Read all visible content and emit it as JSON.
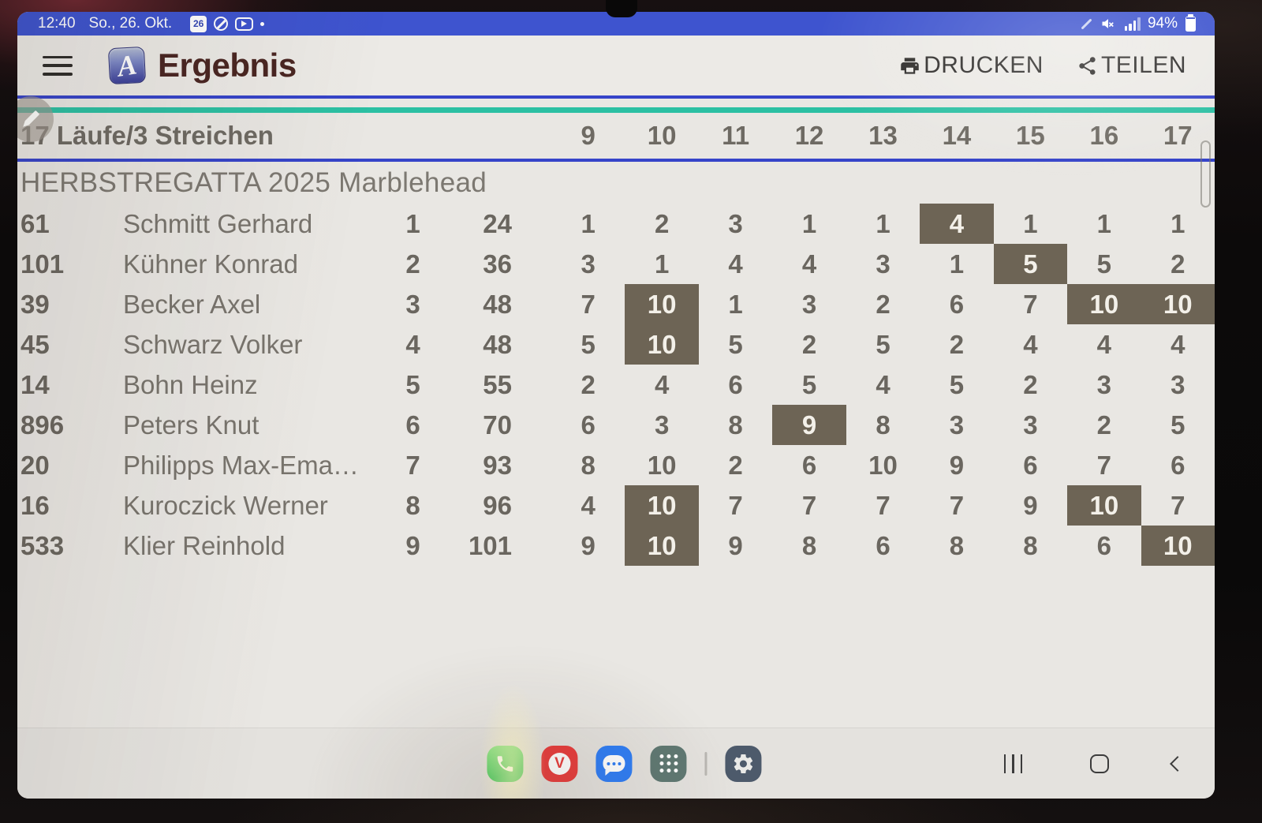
{
  "status_bar": {
    "time": "12:40",
    "date": "So., 26. Okt.",
    "calendar_day": "26",
    "battery_percent": "94%",
    "notification_icons": [
      "calendar-notification-icon",
      "circle-slash-notification-icon",
      "play-notification-icon",
      "notification-dot"
    ],
    "system_icons": [
      "stylus-icon",
      "sound-muted-icon",
      "signal-strength-icon",
      "battery-icon"
    ]
  },
  "app_bar": {
    "title": "Ergebnis",
    "logo_letter": "A",
    "actions": [
      {
        "label": "DRUCKEN",
        "icon": "printer-icon"
      },
      {
        "label": "TEILEN",
        "icon": "share-icon"
      }
    ]
  },
  "results": {
    "summary": "17 Läufe/3 Streichen",
    "race_numbers": [
      "9",
      "10",
      "11",
      "12",
      "13",
      "14",
      "15",
      "16",
      "17"
    ],
    "event_title": "HERBSTREGATTA 2025 Marblehead",
    "rows": [
      {
        "sail": "61",
        "name": "Schmitt Gerhard",
        "rank": "1",
        "points": "24",
        "races": [
          "1",
          "2",
          "3",
          "1",
          "1",
          "4",
          "1",
          "1",
          "1"
        ],
        "discard_indices": [
          5
        ]
      },
      {
        "sail": "101",
        "name": "Kühner Konrad",
        "rank": "2",
        "points": "36",
        "races": [
          "3",
          "1",
          "4",
          "4",
          "3",
          "1",
          "5",
          "5",
          "2"
        ],
        "discard_indices": [
          6
        ]
      },
      {
        "sail": "39",
        "name": "Becker Axel",
        "rank": "3",
        "points": "48",
        "races": [
          "7",
          "10",
          "1",
          "3",
          "2",
          "6",
          "7",
          "10",
          "10"
        ],
        "discard_indices": [
          1,
          7,
          8
        ]
      },
      {
        "sail": "45",
        "name": "Schwarz Volker",
        "rank": "4",
        "points": "48",
        "races": [
          "5",
          "10",
          "5",
          "2",
          "5",
          "2",
          "4",
          "4",
          "4"
        ],
        "discard_indices": [
          1
        ]
      },
      {
        "sail": "14",
        "name": "Bohn Heinz",
        "rank": "5",
        "points": "55",
        "races": [
          "2",
          "4",
          "6",
          "5",
          "4",
          "5",
          "2",
          "3",
          "3"
        ],
        "discard_indices": []
      },
      {
        "sail": "896",
        "name": "Peters Knut",
        "rank": "6",
        "points": "70",
        "races": [
          "6",
          "3",
          "8",
          "9",
          "8",
          "3",
          "3",
          "2",
          "5"
        ],
        "discard_indices": [
          3
        ]
      },
      {
        "sail": "20",
        "name": "Philipps Max-Ema…",
        "rank": "7",
        "points": "93",
        "races": [
          "8",
          "10",
          "2",
          "6",
          "10",
          "9",
          "6",
          "7",
          "6"
        ],
        "discard_indices": []
      },
      {
        "sail": "16",
        "name": "Kuroczick Werner",
        "rank": "8",
        "points": "96",
        "races": [
          "4",
          "10",
          "7",
          "7",
          "7",
          "7",
          "9",
          "10",
          "7"
        ],
        "discard_indices": [
          1,
          7
        ]
      },
      {
        "sail": "533",
        "name": "Klier Reinhold",
        "rank": "9",
        "points": "101",
        "races": [
          "9",
          "10",
          "9",
          "8",
          "6",
          "8",
          "8",
          "6",
          "10"
        ],
        "discard_indices": [
          1,
          8
        ]
      }
    ]
  },
  "dock": {
    "apps": [
      "phone",
      "vivaldi-browser",
      "messages",
      "app-drawer",
      "settings"
    ],
    "nav_buttons": [
      "recents",
      "home",
      "back"
    ]
  },
  "colors": {
    "status_bar_blue": "#3e54cf",
    "rule_blue": "#3644c9",
    "rule_teal": "#2cc0a3",
    "app_title_maroon": "#4a2622",
    "discard_cell_bg": "#6d6455",
    "discard_cell_text": "#f3f0e9",
    "phone_green": "#3fc95c",
    "vivaldi_red": "#e83c3c",
    "messages_blue": "#2e7df6",
    "app_drawer_gray_green": "#5f7872",
    "settings_slate": "#4d5a6b"
  }
}
